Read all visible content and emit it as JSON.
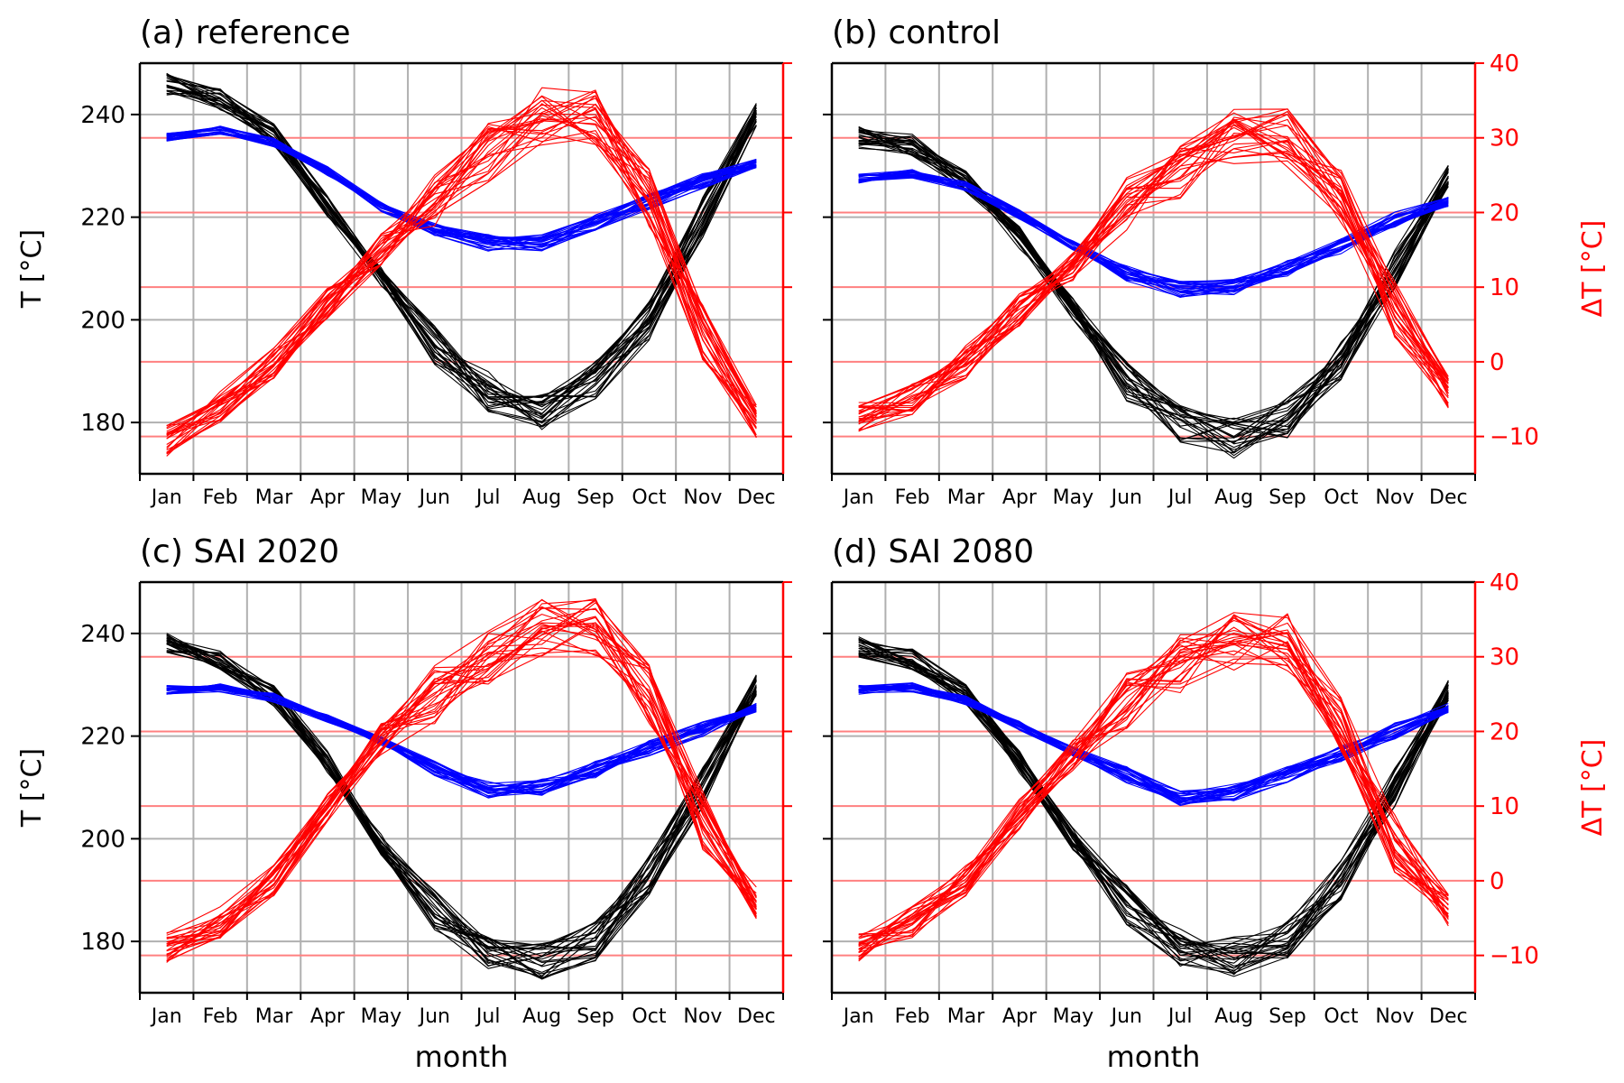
{
  "chart_data": [
    {
      "type": "line",
      "title": "(a) reference",
      "categories": [
        "Jan",
        "Feb",
        "Mar",
        "Apr",
        "May",
        "Jun",
        "Jul",
        "Aug",
        "Sep",
        "Oct",
        "Nov",
        "Dec"
      ],
      "xlabel": "",
      "ylabel": "T [°C]",
      "y2label": "",
      "ylim": [
        170,
        250
      ],
      "y2lim": [
        -15,
        40
      ],
      "yticks": [
        "180",
        "200",
        "220",
        "240"
      ],
      "y2ticks": [],
      "grid": true,
      "series": [
        {
          "axis": "left",
          "color": "#000000",
          "values": [
            246,
            243,
            236,
            222,
            208,
            195,
            186,
            182,
            188,
            200,
            220,
            240
          ]
        },
        {
          "axis": "left",
          "color": "#0000ff",
          "values": [
            235.5,
            237,
            234.5,
            229,
            222,
            218,
            215,
            215,
            219,
            223,
            227,
            230.5
          ]
        },
        {
          "axis": "right",
          "color": "#ff0000",
          "values": [
            -10.5,
            -6,
            0,
            8,
            15,
            22,
            28,
            33,
            33,
            22,
            4,
            -8
          ]
        }
      ]
    },
    {
      "type": "line",
      "title": "(b) control",
      "categories": [
        "Jan",
        "Feb",
        "Mar",
        "Apr",
        "May",
        "Jun",
        "Jul",
        "Aug",
        "Sep",
        "Oct",
        "Nov",
        "Dec"
      ],
      "xlabel": "",
      "ylabel": "",
      "y2label": "ΔT [°C]",
      "ylim": [
        170,
        250
      ],
      "y2lim": [
        -15,
        40
      ],
      "yticks": [],
      "y2ticks": [
        "−10",
        "0",
        "10",
        "20",
        "30",
        "40"
      ],
      "grid": true,
      "series": [
        {
          "axis": "left",
          "color": "#000000",
          "values": [
            235.5,
            234,
            227,
            216,
            202,
            188,
            180,
            177,
            181,
            192,
            210,
            228
          ]
        },
        {
          "axis": "left",
          "color": "#0000ff",
          "values": [
            227.5,
            228.5,
            226,
            220.5,
            214.5,
            209,
            206,
            206.5,
            210,
            214.5,
            219.5,
            223
          ]
        },
        {
          "axis": "right",
          "color": "#ff0000",
          "values": [
            -7.5,
            -5,
            0,
            7,
            13,
            21,
            25,
            30,
            30,
            22,
            7,
            -4
          ]
        }
      ]
    },
    {
      "type": "line",
      "title": "(c) SAI 2020",
      "categories": [
        "Jan",
        "Feb",
        "Mar",
        "Apr",
        "May",
        "Jun",
        "Jul",
        "Aug",
        "Sep",
        "Oct",
        "Nov",
        "Dec"
      ],
      "xlabel": "month",
      "ylabel": "T [°C]",
      "y2label": "",
      "ylim": [
        170,
        250
      ],
      "y2lim": [
        -15,
        40
      ],
      "yticks": [
        "180",
        "200",
        "220",
        "240"
      ],
      "y2ticks": [],
      "grid": true,
      "series": [
        {
          "axis": "left",
          "color": "#000000",
          "values": [
            238,
            235,
            228,
            215,
            199,
            186,
            178,
            176,
            180,
            193,
            210,
            230
          ]
        },
        {
          "axis": "left",
          "color": "#0000ff",
          "values": [
            229,
            229.5,
            227.5,
            223.5,
            219,
            213.5,
            209.5,
            210,
            213.5,
            217.5,
            221.5,
            225.5
          ]
        },
        {
          "axis": "right",
          "color": "#ff0000",
          "values": [
            -9,
            -5.5,
            0,
            10,
            19,
            25,
            30,
            34,
            34,
            25,
            8,
            -3
          ]
        }
      ]
    },
    {
      "type": "line",
      "title": "(d) SAI 2080",
      "categories": [
        "Jan",
        "Feb",
        "Mar",
        "Apr",
        "May",
        "Jun",
        "Jul",
        "Aug",
        "Sep",
        "Oct",
        "Nov",
        "Dec"
      ],
      "xlabel": "month",
      "ylabel": "",
      "y2label": "ΔT [°C]",
      "ylim": [
        170,
        250
      ],
      "y2lim": [
        -15,
        40
      ],
      "yticks": [],
      "y2ticks": [
        "−10",
        "0",
        "10",
        "20",
        "30",
        "40"
      ],
      "grid": true,
      "series": [
        {
          "axis": "left",
          "color": "#000000",
          "values": [
            237.5,
            235,
            228,
            215,
            200,
            187,
            179,
            177,
            180,
            192,
            210,
            229
          ]
        },
        {
          "axis": "left",
          "color": "#0000ff",
          "values": [
            229,
            229.5,
            227,
            222,
            217,
            212.5,
            208,
            209,
            212.5,
            216.5,
            221,
            225.5
          ]
        },
        {
          "axis": "right",
          "color": "#ff0000",
          "values": [
            -9,
            -5.5,
            0,
            9,
            17,
            24,
            29,
            32,
            32,
            21,
            5,
            -4
          ]
        }
      ]
    }
  ]
}
